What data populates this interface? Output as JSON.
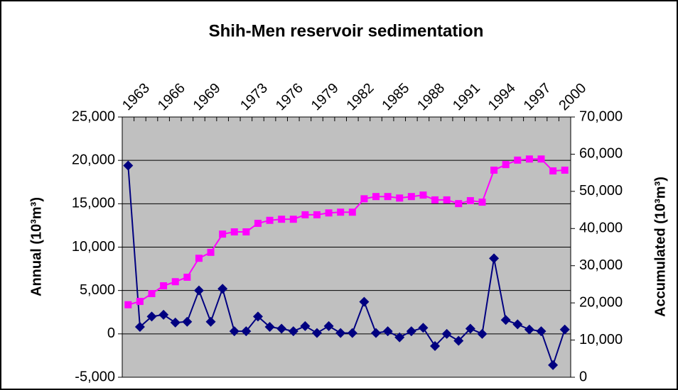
{
  "chart_data": {
    "type": "line",
    "title": "Shih-Men reservoir sedimentation",
    "y_label": "Annual (10³m³)",
    "y2_label": "Accumulated (10³m³)",
    "categories": [
      "1963",
      null,
      null,
      "1966",
      null,
      null,
      "1969",
      null,
      null,
      null,
      "1973",
      null,
      null,
      "1976",
      null,
      null,
      "1979",
      null,
      null,
      "1982",
      null,
      null,
      "1985",
      null,
      null,
      "1988",
      null,
      null,
      "1991",
      null,
      null,
      "1994",
      null,
      null,
      "1997",
      null,
      null,
      "2000"
    ],
    "series": [
      {
        "name": "Annual",
        "color": "#000080",
        "marker": "diamond",
        "values": [
          19400,
          800,
          2000,
          2200,
          1300,
          1400,
          5000,
          1400,
          5200,
          300,
          300,
          2000,
          800,
          600,
          300,
          900,
          100,
          900,
          100,
          100,
          3700,
          100,
          300,
          -400,
          300,
          700,
          -1400,
          0,
          -800,
          600,
          0,
          8700,
          1600,
          1100,
          500,
          300,
          -3600,
          500
        ]
      },
      {
        "name": "Accumulated",
        "color": "#ff00ff",
        "marker": "square",
        "axis": "y2",
        "values": [
          19500,
          20400,
          22500,
          24600,
          25700,
          26900,
          32000,
          33600,
          38500,
          39100,
          39100,
          41400,
          42200,
          42500,
          42500,
          43700,
          43700,
          44200,
          44400,
          44400,
          48000,
          48600,
          48600,
          48200,
          48600,
          49000,
          47700,
          47700,
          46700,
          47500,
          47100,
          55700,
          57200,
          58400,
          58700,
          58700,
          55500,
          55700
        ]
      }
    ],
    "ylim": [
      -5000,
      25000
    ],
    "yticks": [
      {
        "value": -5000,
        "label": "-5,000"
      },
      0,
      {
        "value": 5000,
        "label": "5,000"
      },
      {
        "value": 10000,
        "label": "10,000"
      },
      {
        "value": 15000,
        "label": "15,000"
      },
      {
        "value": 20000,
        "label": "20,000"
      },
      {
        "value": 25000,
        "label": "25,000"
      }
    ],
    "y2lim": [
      0,
      70000
    ],
    "y2ticks": [
      0,
      {
        "value": 10000,
        "label": "10,000"
      },
      {
        "value": 20000,
        "label": "20,000"
      },
      {
        "value": 30000,
        "label": "30,000"
      },
      {
        "value": 40000,
        "label": "40,000"
      },
      {
        "value": 50000,
        "label": "50,000"
      },
      {
        "value": 60000,
        "label": "60,000"
      },
      {
        "value": 70000,
        "label": "70,000"
      }
    ],
    "grid": true,
    "plot_background": "#c0c0c0"
  }
}
